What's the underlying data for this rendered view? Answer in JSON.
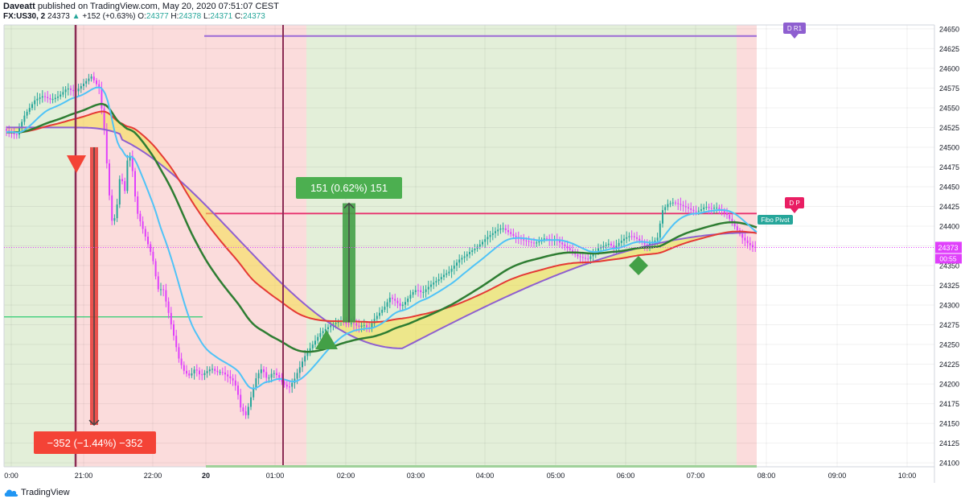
{
  "header": {
    "author": "Daveatt",
    "published": "published on TradingView.com, May 20, 2020 07:51:07 CEST",
    "symbol": "FX:US30, 2",
    "last": "24373",
    "change": "+152 (+0.63%)",
    "o_label": "O:",
    "o": "24377",
    "h_label": "H:",
    "h": "24378",
    "l_label": "L:",
    "l": "24371",
    "c_label": "C:",
    "c": "24373"
  },
  "footer": {
    "brand": "TradingView"
  },
  "chart_data": {
    "type": "candlestick",
    "x_ticks": [
      "0:00",
      "21:00",
      "22:00",
      "20",
      "01:00",
      "02:00",
      "03:00",
      "04:00",
      "05:00",
      "06:00",
      "07:00",
      "08:00",
      "09:00",
      "10:00"
    ],
    "y_ticks": [
      24100,
      24125,
      24150,
      24175,
      24200,
      24225,
      24250,
      24275,
      24300,
      24325,
      24350,
      24375,
      24400,
      24425,
      24450,
      24475,
      24500,
      24525,
      24550,
      24575,
      24600,
      24625,
      24650
    ],
    "ylim": [
      24095,
      24655
    ],
    "price_label": "24373",
    "countdown_label": "00:55",
    "measure_down": {
      "label": "−352 (−1.44%) −352",
      "from": 24500,
      "to": 24148
    },
    "measure_up": {
      "label": "151 (0.62%) 151",
      "from": 24278,
      "to": 24429
    },
    "pivots": [
      {
        "name": "D R1",
        "value": 24641
      },
      {
        "name": "D P",
        "value": 24416
      },
      {
        "name": "Fibo Pivot",
        "value": 24416
      }
    ],
    "level_green": 24285,
    "sessions": [
      "bullish",
      "bearish",
      "bullish",
      "bearish"
    ],
    "markers": [
      {
        "type": "sell-triangle",
        "color": "#f44336"
      },
      {
        "type": "buy-triangle",
        "color": "#43a047"
      },
      {
        "type": "diamond",
        "color": "#43a047"
      }
    ],
    "price_path": [
      [
        0,
        24520
      ],
      [
        6,
        24515
      ],
      [
        12,
        24540
      ],
      [
        20,
        24560
      ],
      [
        26,
        24565
      ],
      [
        32,
        24560
      ],
      [
        38,
        24565
      ],
      [
        44,
        24575
      ],
      [
        50,
        24570
      ],
      [
        56,
        24580
      ],
      [
        62,
        24590
      ],
      [
        68,
        24575
      ],
      [
        72,
        24520
      ],
      [
        75,
        24450
      ],
      [
        78,
        24400
      ],
      [
        81,
        24420
      ],
      [
        84,
        24470
      ],
      [
        87,
        24440
      ],
      [
        90,
        24500
      ],
      [
        93,
        24470
      ],
      [
        96,
        24420
      ],
      [
        100,
        24400
      ],
      [
        104,
        24380
      ],
      [
        108,
        24360
      ],
      [
        112,
        24320
      ],
      [
        116,
        24320
      ],
      [
        120,
        24290
      ],
      [
        124,
        24260
      ],
      [
        128,
        24230
      ],
      [
        132,
        24215
      ],
      [
        136,
        24210
      ],
      [
        140,
        24220
      ],
      [
        144,
        24210
      ],
      [
        148,
        24215
      ],
      [
        152,
        24220
      ],
      [
        156,
        24215
      ],
      [
        160,
        24215
      ],
      [
        164,
        24210
      ],
      [
        168,
        24205
      ],
      [
        171,
        24195
      ],
      [
        174,
        24170
      ],
      [
        178,
        24160
      ],
      [
        182,
        24185
      ],
      [
        186,
        24210
      ],
      [
        190,
        24220
      ],
      [
        194,
        24205
      ],
      [
        198,
        24215
      ],
      [
        202,
        24210
      ],
      [
        206,
        24200
      ],
      [
        210,
        24195
      ],
      [
        214,
        24205
      ],
      [
        218,
        24220
      ],
      [
        222,
        24235
      ],
      [
        226,
        24245
      ],
      [
        230,
        24255
      ],
      [
        234,
        24265
      ],
      [
        238,
        24270
      ],
      [
        242,
        24275
      ],
      [
        246,
        24278
      ],
      [
        250,
        24280
      ],
      [
        254,
        24275
      ],
      [
        258,
        24278
      ],
      [
        262,
        24272
      ],
      [
        266,
        24275
      ],
      [
        270,
        24270
      ],
      [
        274,
        24282
      ],
      [
        278,
        24290
      ],
      [
        282,
        24298
      ],
      [
        286,
        24310
      ],
      [
        290,
        24305
      ],
      [
        294,
        24298
      ],
      [
        298,
        24305
      ],
      [
        302,
        24315
      ],
      [
        306,
        24320
      ],
      [
        310,
        24315
      ],
      [
        314,
        24322
      ],
      [
        318,
        24328
      ],
      [
        322,
        24332
      ],
      [
        326,
        24338
      ],
      [
        330,
        24342
      ],
      [
        334,
        24350
      ],
      [
        338,
        24358
      ],
      [
        342,
        24362
      ],
      [
        346,
        24368
      ],
      [
        350,
        24372
      ],
      [
        354,
        24378
      ],
      [
        358,
        24385
      ],
      [
        362,
        24390
      ],
      [
        366,
        24395
      ],
      [
        370,
        24398
      ],
      [
        374,
        24393
      ],
      [
        378,
        24388
      ],
      [
        382,
        24385
      ],
      [
        386,
        24382
      ],
      [
        390,
        24380
      ],
      [
        394,
        24378
      ],
      [
        398,
        24381
      ],
      [
        402,
        24385
      ],
      [
        406,
        24382
      ],
      [
        410,
        24383
      ],
      [
        414,
        24378
      ],
      [
        418,
        24373
      ],
      [
        422,
        24368
      ],
      [
        426,
        24362
      ],
      [
        430,
        24360
      ],
      [
        434,
        24358
      ],
      [
        438,
        24365
      ],
      [
        442,
        24372
      ],
      [
        446,
        24375
      ],
      [
        450,
        24378
      ],
      [
        454,
        24372
      ],
      [
        458,
        24380
      ],
      [
        462,
        24385
      ],
      [
        466,
        24388
      ],
      [
        470,
        24385
      ],
      [
        474,
        24380
      ],
      [
        478,
        24375
      ],
      [
        482,
        24380
      ],
      [
        486,
        24383
      ],
      [
        490,
        24420
      ],
      [
        494,
        24428
      ],
      [
        498,
        24430
      ],
      [
        502,
        24428
      ],
      [
        506,
        24425
      ],
      [
        510,
        24422
      ],
      [
        514,
        24418
      ],
      [
        518,
        24420
      ],
      [
        522,
        24425
      ],
      [
        526,
        24422
      ],
      [
        530,
        24424
      ],
      [
        534,
        24420
      ],
      [
        538,
        24415
      ],
      [
        542,
        24405
      ],
      [
        546,
        24395
      ],
      [
        550,
        24385
      ],
      [
        554,
        24378
      ],
      [
        558,
        24373
      ]
    ]
  }
}
